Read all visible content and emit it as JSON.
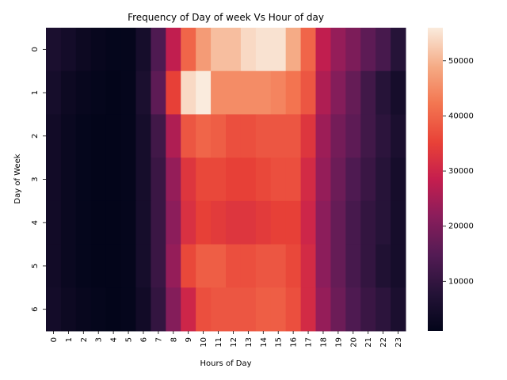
{
  "chart_data": {
    "type": "heatmap",
    "title": "Frequency of Day of week Vs Hour of day",
    "xlabel": "Hours of Day",
    "ylabel": "Day of Week",
    "x": [
      "0",
      "1",
      "2",
      "3",
      "4",
      "5",
      "6",
      "7",
      "8",
      "9",
      "10",
      "11",
      "12",
      "13",
      "14",
      "15",
      "16",
      "17",
      "18",
      "19",
      "20",
      "21",
      "22",
      "23"
    ],
    "y": [
      "0",
      "1",
      "2",
      "3",
      "4",
      "5",
      "6"
    ],
    "values": [
      [
        6000,
        4500,
        3000,
        2000,
        1500,
        1500,
        5000,
        14000,
        28000,
        40000,
        47000,
        51000,
        51000,
        54000,
        55000,
        55000,
        49000,
        40000,
        28000,
        23000,
        20000,
        16000,
        13000,
        8000
      ],
      [
        5000,
        3000,
        2000,
        1500,
        1000,
        1500,
        6000,
        16000,
        35000,
        54000,
        56000,
        45000,
        45000,
        45000,
        45000,
        44000,
        42000,
        38000,
        26000,
        21000,
        17000,
        12000,
        8000,
        5000
      ],
      [
        4000,
        2500,
        1500,
        1000,
        1000,
        1500,
        5000,
        12000,
        26000,
        38000,
        40000,
        39000,
        37000,
        37000,
        38000,
        38000,
        38000,
        33000,
        24000,
        19000,
        16000,
        12000,
        9000,
        6000
      ],
      [
        4000,
        2500,
        1500,
        1000,
        1000,
        1500,
        5000,
        11000,
        23000,
        33000,
        36000,
        36000,
        35000,
        35000,
        36000,
        37000,
        37000,
        31000,
        23000,
        18000,
        14000,
        11000,
        8000,
        5000
      ],
      [
        4000,
        2500,
        1500,
        1000,
        1000,
        1500,
        5000,
        11000,
        22000,
        32000,
        35000,
        34000,
        33000,
        33000,
        34000,
        35000,
        35000,
        30000,
        22000,
        17000,
        13000,
        10000,
        8000,
        5000
      ],
      [
        4000,
        2500,
        1500,
        1000,
        1000,
        1500,
        5000,
        11000,
        23000,
        36000,
        39000,
        39000,
        37000,
        37000,
        38000,
        38000,
        36000,
        31000,
        22000,
        17000,
        13000,
        10000,
        7000,
        5000
      ],
      [
        4500,
        3000,
        2000,
        1500,
        1000,
        1500,
        4000,
        10000,
        21000,
        30000,
        37000,
        38000,
        38000,
        38000,
        39000,
        39000,
        37000,
        31000,
        23000,
        18000,
        14000,
        11000,
        9000,
        6000
      ]
    ],
    "colorbar": {
      "min": 1000,
      "max": 56000,
      "ticks": [
        10000,
        20000,
        30000,
        40000,
        50000
      ],
      "tick_labels": [
        "10000",
        "20000",
        "30000",
        "40000",
        "50000"
      ],
      "colormap": "rocket"
    },
    "grid": false,
    "legend": "colorbar-right"
  }
}
